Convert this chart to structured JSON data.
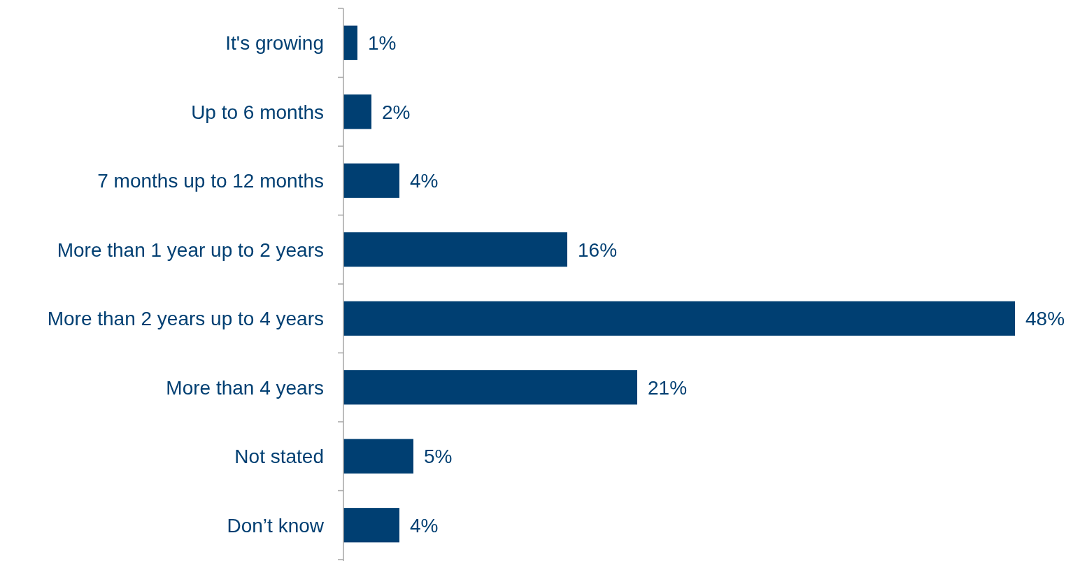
{
  "chart_data": {
    "type": "bar",
    "orientation": "horizontal",
    "categories": [
      "It's growing",
      "Up to 6 months",
      "7 months up to 12 months",
      "More than 1 year up to 2 years",
      "More than 2 years up to 4 years",
      "More than 4 years",
      "Not stated",
      "Don’t know"
    ],
    "values": [
      1,
      2,
      4,
      16,
      48,
      21,
      5,
      4
    ],
    "value_labels": [
      "1%",
      "2%",
      "4%",
      "16%",
      "48%",
      "21%",
      "5%",
      "4%"
    ],
    "color": "#003f72"
  }
}
